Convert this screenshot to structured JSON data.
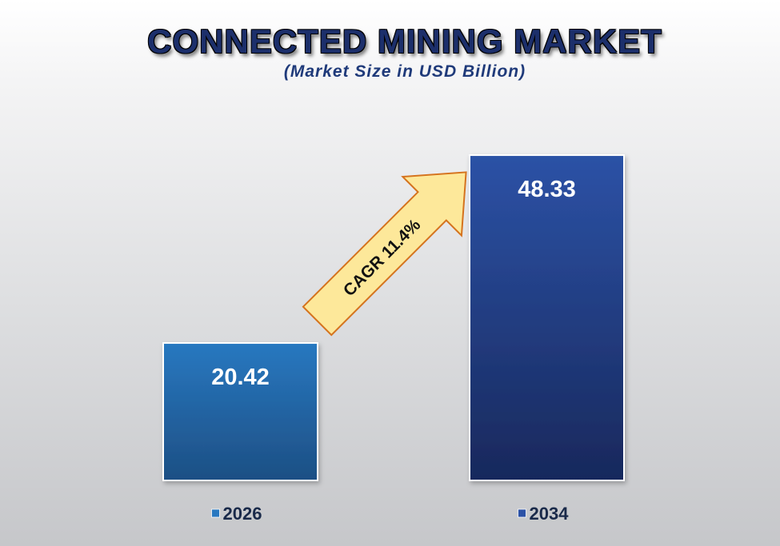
{
  "chart_data": {
    "type": "bar",
    "title": "CONNECTED MINING MARKET",
    "subtitle": "(Market Size in USD Billion)",
    "categories": [
      "2026",
      "2034"
    ],
    "values": [
      20.42,
      48.33
    ],
    "data_labels": [
      "20.42",
      "48.33"
    ],
    "ylim": [
      0,
      50
    ],
    "grid": false,
    "legend_placement": "bottom",
    "annotation": "CAGR 11.4%",
    "colors": {
      "bar_2026_top": "#2878c0",
      "bar_2026_bottom": "#1d4f84",
      "bar_2034_top": "#2c52a6",
      "bar_2034_bottom": "#18285c",
      "arrow_fill": "#fde89a",
      "arrow_stroke": "#d5731e",
      "title": "#1c2f6b"
    }
  }
}
